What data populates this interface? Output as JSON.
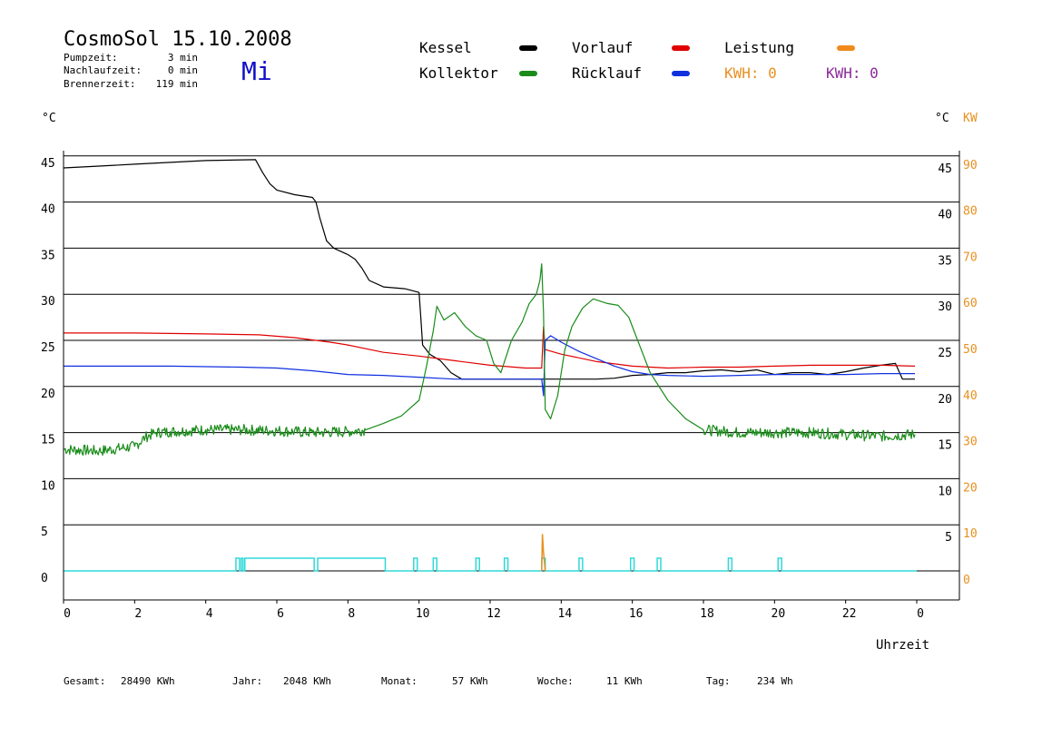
{
  "header": {
    "title": "CosmoSol 15.10.2008",
    "weekday": "Mi",
    "weekday_color": "#1010c8",
    "stats": [
      {
        "label": "Pumpzeit:",
        "value": "3 min"
      },
      {
        "label": "Nachlaufzeit:",
        "value": "0 min"
      },
      {
        "label": "Brennerzeit:",
        "value": "119 min"
      }
    ]
  },
  "legend": {
    "items": [
      {
        "label": "Kessel",
        "color": "#000000"
      },
      {
        "label": "Vorlauf",
        "color": "#e00000"
      },
      {
        "label": "Leistung",
        "color": "#f08a1c"
      },
      {
        "label": "Kollektor",
        "color": "#1a8c1a"
      },
      {
        "label": "Rücklauf",
        "color": "#1030e0"
      }
    ],
    "kwh": [
      {
        "label": "KWH: 0",
        "color": "#e89020"
      },
      {
        "label": "KWH: 0",
        "color": "#8a2a9a"
      }
    ]
  },
  "axes": {
    "left_unit": "°C",
    "right_unit_temp": "°C",
    "right_unit_power": "KW",
    "xlabel": "Uhrzeit",
    "x_ticks": [
      "0",
      "2",
      "4",
      "6",
      "8",
      "10",
      "12",
      "14",
      "16",
      "18",
      "20",
      "22",
      "0"
    ],
    "left_ticks": [
      "0",
      "5",
      "10",
      "15",
      "20",
      "25",
      "30",
      "35",
      "40",
      "45"
    ],
    "right_temp_ticks": [
      "5",
      "10",
      "15",
      "20",
      "25",
      "30",
      "35",
      "40",
      "45"
    ],
    "right_power_ticks": [
      "0",
      "10",
      "20",
      "30",
      "40",
      "50",
      "60",
      "70",
      "80",
      "90"
    ],
    "power_color": "#e89020",
    "pump_color": "#30d8d8"
  },
  "footer": [
    {
      "label": "Gesamt:",
      "value": "28490 KWh"
    },
    {
      "label": "Jahr:",
      "value": "2048 KWh"
    },
    {
      "label": "Monat:",
      "value": "57 KWh"
    },
    {
      "label": "Woche:",
      "value": "11 KWh"
    },
    {
      "label": "Tag:",
      "value": "234 Wh"
    }
  ],
  "chart_data": {
    "type": "line",
    "x_unit": "hours",
    "xlim": [
      0,
      24
    ],
    "ylim": [
      0,
      45
    ],
    "ylim_power": [
      0,
      90
    ],
    "grid": "horizontal",
    "series": [
      {
        "name": "Kessel",
        "color": "#000000",
        "points": [
          [
            0,
            43.7
          ],
          [
            1,
            43.9
          ],
          [
            2,
            44.1
          ],
          [
            3,
            44.3
          ],
          [
            4,
            44.5
          ],
          [
            5.4,
            44.6
          ],
          [
            5.6,
            43.2
          ],
          [
            5.8,
            42
          ],
          [
            6,
            41.3
          ],
          [
            6.5,
            40.8
          ],
          [
            7,
            40.5
          ],
          [
            7.1,
            40
          ],
          [
            7.2,
            38.4
          ],
          [
            7.4,
            35.8
          ],
          [
            7.6,
            35
          ],
          [
            8,
            34.3
          ],
          [
            8.2,
            33.8
          ],
          [
            8.4,
            32.8
          ],
          [
            8.6,
            31.5
          ],
          [
            9,
            30.8
          ],
          [
            9.6,
            30.6
          ],
          [
            10,
            30.2
          ],
          [
            10.05,
            27.5
          ],
          [
            10.1,
            24.5
          ],
          [
            10.3,
            23.5
          ],
          [
            10.6,
            22.8
          ],
          [
            10.9,
            21.5
          ],
          [
            11.2,
            20.8
          ],
          [
            12,
            20.8
          ],
          [
            13,
            20.8
          ],
          [
            14,
            20.8
          ],
          [
            15,
            20.8
          ],
          [
            15.5,
            20.9
          ],
          [
            16,
            21.2
          ],
          [
            16.5,
            21.3
          ],
          [
            17,
            21.5
          ],
          [
            17.5,
            21.5
          ],
          [
            18,
            21.7
          ],
          [
            18.5,
            21.8
          ],
          [
            19,
            21.6
          ],
          [
            19.5,
            21.8
          ],
          [
            20,
            21.3
          ],
          [
            20.5,
            21.5
          ],
          [
            21,
            21.5
          ],
          [
            21.5,
            21.3
          ],
          [
            22,
            21.6
          ],
          [
            22.5,
            22
          ],
          [
            23,
            22.3
          ],
          [
            23.4,
            22.5
          ],
          [
            23.6,
            20.8
          ],
          [
            23.95,
            20.8
          ]
        ]
      },
      {
        "name": "Vorlauf",
        "color": "#e00000",
        "points": [
          [
            0,
            25.8
          ],
          [
            2,
            25.8
          ],
          [
            4,
            25.7
          ],
          [
            5.5,
            25.6
          ],
          [
            6.5,
            25.3
          ],
          [
            7.5,
            24.8
          ],
          [
            8,
            24.5
          ],
          [
            9,
            23.7
          ],
          [
            10,
            23.3
          ],
          [
            11,
            22.8
          ],
          [
            12,
            22.3
          ],
          [
            13,
            22
          ],
          [
            13.45,
            22
          ],
          [
            13.5,
            26.5
          ],
          [
            13.55,
            24
          ],
          [
            14,
            23.5
          ],
          [
            15,
            22.7
          ],
          [
            16,
            22.2
          ],
          [
            17,
            22
          ],
          [
            18,
            22.1
          ],
          [
            19,
            22.1
          ],
          [
            20,
            22.2
          ],
          [
            21,
            22.3
          ],
          [
            22,
            22.3
          ],
          [
            23,
            22.3
          ],
          [
            23.95,
            22.2
          ]
        ]
      },
      {
        "name": "Rücklauf",
        "color": "#1030e0",
        "points": [
          [
            0,
            22.2
          ],
          [
            3,
            22.2
          ],
          [
            5,
            22.1
          ],
          [
            6,
            22
          ],
          [
            7,
            21.7
          ],
          [
            8,
            21.3
          ],
          [
            9,
            21.2
          ],
          [
            10,
            21
          ],
          [
            11,
            20.8
          ],
          [
            12,
            20.8
          ],
          [
            13,
            20.8
          ],
          [
            13.45,
            20.8
          ],
          [
            13.5,
            19
          ],
          [
            13.55,
            25
          ],
          [
            13.7,
            25.5
          ],
          [
            14,
            24.8
          ],
          [
            14.5,
            23.8
          ],
          [
            15,
            23
          ],
          [
            15.5,
            22.2
          ],
          [
            16,
            21.6
          ],
          [
            16.5,
            21.3
          ],
          [
            17,
            21.2
          ],
          [
            18,
            21.1
          ],
          [
            19,
            21.2
          ],
          [
            20,
            21.3
          ],
          [
            21,
            21.3
          ],
          [
            22,
            21.3
          ],
          [
            23,
            21.4
          ],
          [
            23.95,
            21.4
          ]
        ]
      },
      {
        "name": "Kollektor",
        "color": "#1a8c1a",
        "points": [
          [
            0,
            13.2
          ],
          [
            1,
            13
          ],
          [
            2,
            13.5
          ],
          [
            2.3,
            14.5
          ],
          [
            2.6,
            15
          ],
          [
            3,
            15.1
          ],
          [
            4,
            15.3
          ],
          [
            5,
            15.3
          ],
          [
            6,
            15.2
          ],
          [
            7,
            15
          ],
          [
            8,
            15.1
          ],
          [
            8.5,
            15.3
          ],
          [
            9,
            16
          ],
          [
            9.5,
            16.8
          ],
          [
            10,
            18.5
          ],
          [
            10.2,
            22
          ],
          [
            10.4,
            26
          ],
          [
            10.5,
            28.7
          ],
          [
            10.7,
            27.2
          ],
          [
            11,
            28
          ],
          [
            11.3,
            26.5
          ],
          [
            11.6,
            25.5
          ],
          [
            11.9,
            25
          ],
          [
            12.1,
            22.5
          ],
          [
            12.3,
            21.5
          ],
          [
            12.6,
            25
          ],
          [
            12.9,
            27
          ],
          [
            13.1,
            29
          ],
          [
            13.3,
            30
          ],
          [
            13.4,
            31.5
          ],
          [
            13.45,
            33.3
          ],
          [
            13.5,
            28
          ],
          [
            13.55,
            17.5
          ],
          [
            13.7,
            16.5
          ],
          [
            13.9,
            19
          ],
          [
            14.1,
            24
          ],
          [
            14.3,
            26.5
          ],
          [
            14.6,
            28.5
          ],
          [
            14.9,
            29.5
          ],
          [
            15.3,
            29
          ],
          [
            15.6,
            28.8
          ],
          [
            15.9,
            27.5
          ],
          [
            16.2,
            24.5
          ],
          [
            16.5,
            21.5
          ],
          [
            17,
            18.5
          ],
          [
            17.5,
            16.5
          ],
          [
            18,
            15.3
          ],
          [
            19,
            15
          ],
          [
            20,
            15
          ],
          [
            21,
            15
          ],
          [
            22,
            14.8
          ],
          [
            23,
            14.6
          ],
          [
            23.95,
            14.8
          ]
        ]
      }
    ],
    "leistung_kw": [
      [
        13.45,
        0
      ],
      [
        13.47,
        8
      ],
      [
        13.5,
        4
      ],
      [
        13.55,
        0
      ]
    ],
    "pump_pulses_hours": [
      4.85,
      4.95,
      5,
      5.05,
      5.1,
      7.05,
      7.15,
      9.05,
      9.85,
      9.95,
      10.4,
      10.5,
      11.6,
      11.7,
      12.4,
      12.5,
      13.45,
      13.55,
      14.5,
      14.6,
      15.95,
      16.05,
      16.7,
      16.8,
      18.7,
      18.8,
      20.1,
      20.2
    ]
  }
}
